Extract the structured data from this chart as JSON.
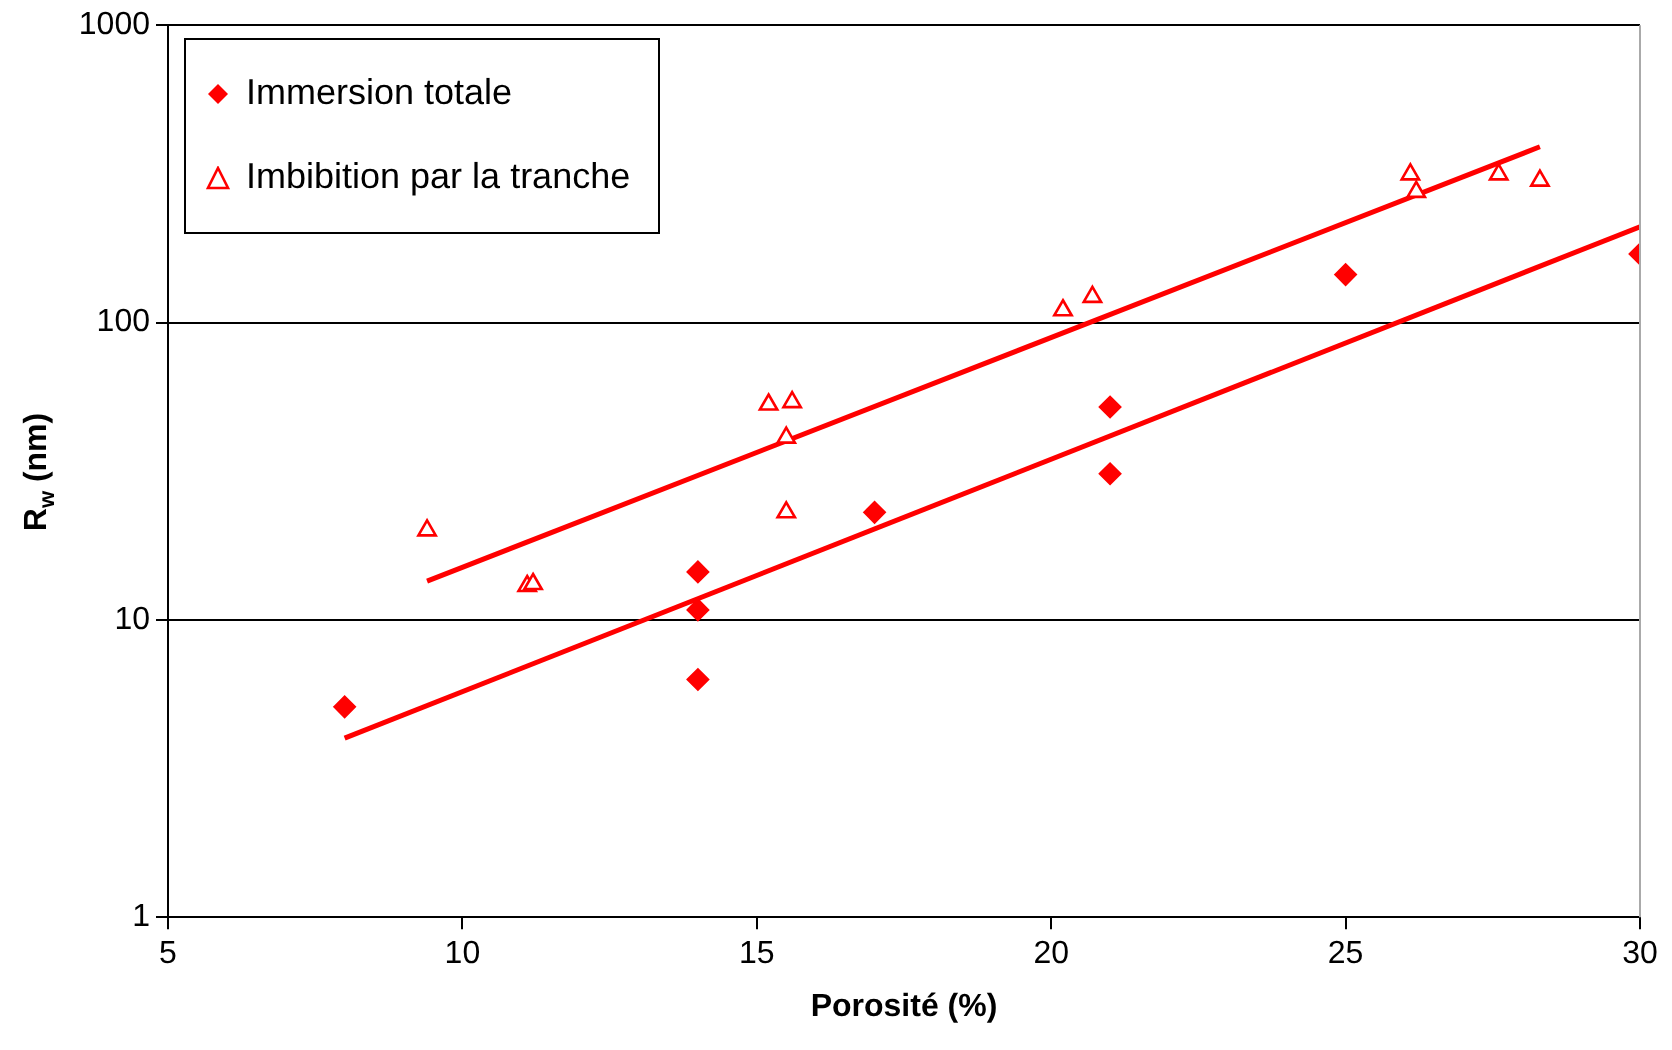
{
  "chart_data": {
    "type": "scatter",
    "xlabel": "Porosité (%)",
    "ylabel": "R$_{w}$ (nm)",
    "xlim": [
      5,
      30
    ],
    "xticks": [
      5,
      10,
      15,
      20,
      25,
      30
    ],
    "ylim": [
      1,
      1000
    ],
    "yticks": [
      1,
      10,
      100,
      1000
    ],
    "log": "y",
    "grid": "y",
    "legend": "top left",
    "series": [
      {
        "name": "Immersion totale",
        "color": "#ff0000",
        "marker": "diamond",
        "x": [
          8,
          14,
          14,
          14,
          17,
          21,
          21,
          25,
          30
        ],
        "values": [
          5.1,
          14.5,
          10.8,
          6.3,
          23,
          52,
          31,
          145,
          170
        ]
      },
      {
        "name": "Imbibition par la tranche",
        "color": "#ff0000",
        "marker": "triangle",
        "x": [
          9.4,
          11.1,
          11.2,
          15.2,
          15.6,
          15.5,
          15.5,
          20.2,
          20.7,
          26.1,
          26.2,
          27.6,
          28.3
        ],
        "values": [
          20,
          13,
          13.2,
          53,
          54,
          41,
          23,
          110,
          122,
          315,
          275,
          315,
          300
        ]
      },
      {
        "type": "line",
        "color": "#ff0000",
        "marker": "none",
        "x": [
          8,
          30
        ],
        "values": [
          4,
          210
        ]
      },
      {
        "type": "line",
        "color": "#ff0000",
        "marker": "none",
        "x": [
          9.4,
          28.3
        ],
        "values": [
          13.5,
          390
        ]
      }
    ]
  }
}
